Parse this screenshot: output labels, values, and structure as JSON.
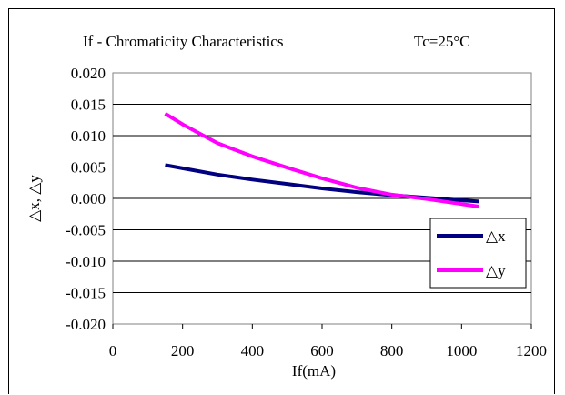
{
  "chart_data": {
    "type": "line",
    "title": "If - Chromaticity Characteristics",
    "condition": "Tc=25°C",
    "xlabel": "If(mA)",
    "ylabel": "△x, △y",
    "xlim": [
      0,
      1200
    ],
    "ylim": [
      -0.02,
      0.02
    ],
    "x_ticks": [
      0,
      200,
      400,
      600,
      800,
      1000,
      1200
    ],
    "x_tick_labels": [
      "0",
      "200",
      "400",
      "600",
      "800",
      "1000",
      "1200"
    ],
    "y_ticks": [
      0.02,
      0.015,
      0.01,
      0.005,
      0.0,
      -0.005,
      -0.01,
      -0.015,
      -0.02
    ],
    "y_tick_labels": [
      "0.020",
      "0.015",
      "0.010",
      "0.005",
      "0.000",
      "-0.005",
      "-0.010",
      "-0.015",
      "-0.020"
    ],
    "grid": "horizontal",
    "legend_position": "bottom-right",
    "series": [
      {
        "name": "△x",
        "color": "#000080",
        "x": [
          150,
          200,
          300,
          400,
          500,
          600,
          700,
          800,
          900,
          1000,
          1050
        ],
        "y": [
          0.0053,
          0.0048,
          0.0038,
          0.003,
          0.0023,
          0.0016,
          0.001,
          0.0005,
          0.0001,
          -0.0003,
          -0.0005
        ]
      },
      {
        "name": "△y",
        "color": "#ff00ff",
        "x": [
          150,
          200,
          300,
          400,
          500,
          600,
          700,
          800,
          900,
          1000,
          1050
        ],
        "y": [
          0.0135,
          0.0118,
          0.0088,
          0.0067,
          0.0049,
          0.0032,
          0.0017,
          0.0006,
          -0.0001,
          -0.0009,
          -0.0013
        ]
      }
    ]
  }
}
